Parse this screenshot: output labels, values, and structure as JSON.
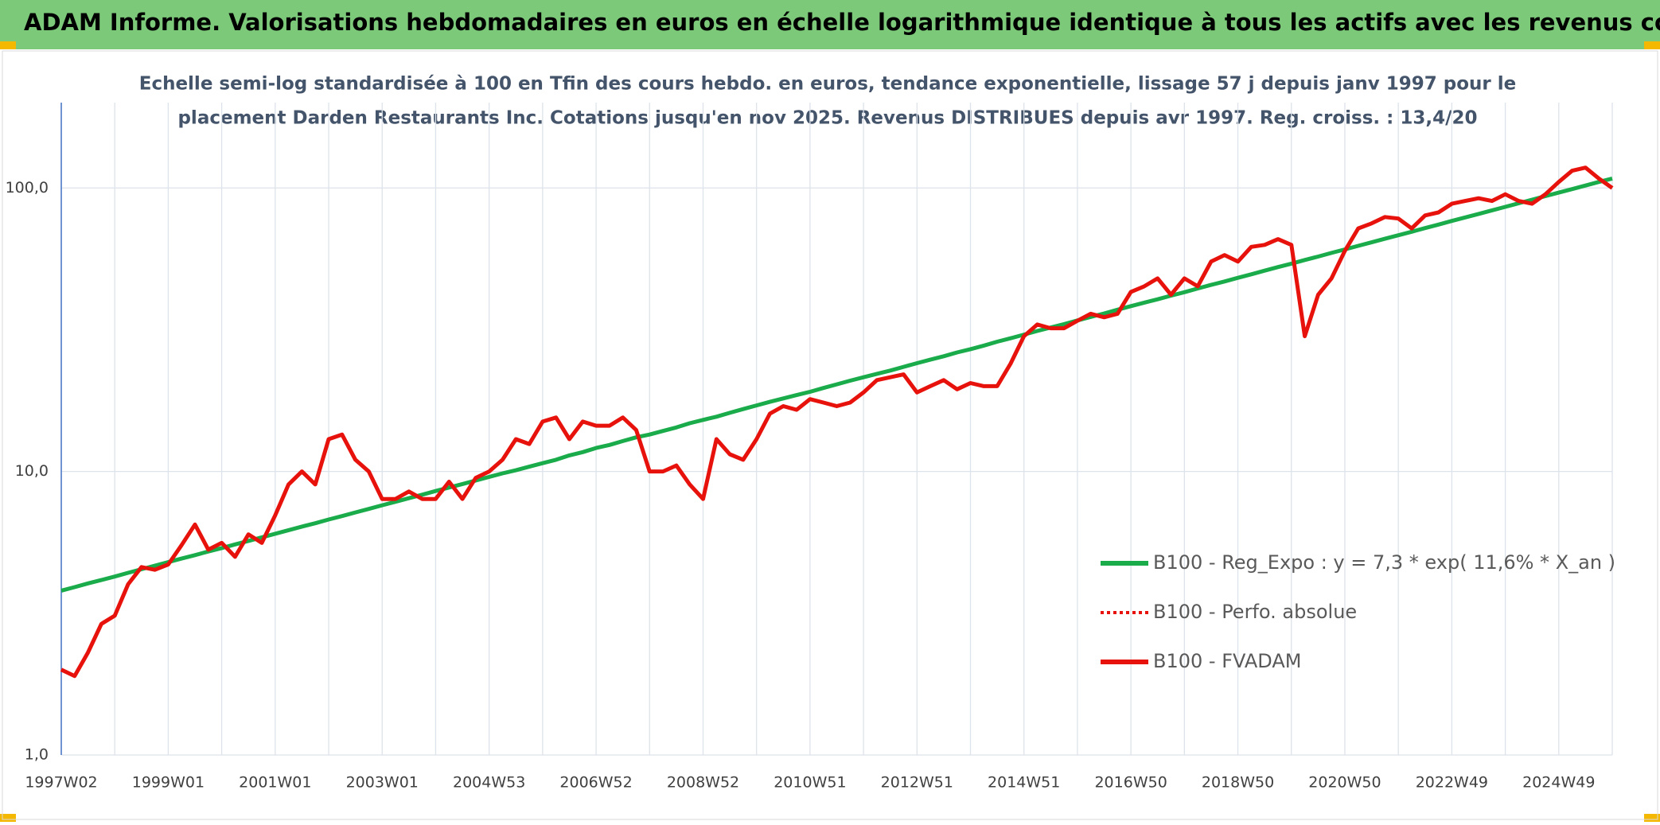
{
  "chart_data": {
    "type": "line",
    "title": "ADAM Informe. Valorisations hebdomadaires en euros en échelle logarithmique identique à tous les actifs avec les revenus connus distribués",
    "subtitle": [
      "Echelle semi-log standardisée à 100 en Tfin des cours hebdo. en euros, tendance exponentielle, lissage 57 j depuis janv 1997 pour le",
      "placement Darden Restaurants Inc. Cotations jusqu'en nov 2025. Revenus DISTRIBUES depuis avr 1997. Reg. croiss. : 13,4/20"
    ],
    "categories": [
      "1997W02",
      null,
      null,
      null,
      null,
      null,
      null,
      null,
      "1999W01",
      null,
      null,
      null,
      null,
      null,
      null,
      null,
      "2001W01",
      null,
      null,
      null,
      null,
      null,
      null,
      null,
      "2003W01",
      null,
      null,
      null,
      null,
      null,
      null,
      null,
      "2004W53",
      null,
      null,
      null,
      null,
      null,
      null,
      null,
      "2006W52",
      null,
      null,
      null,
      null,
      null,
      null,
      null,
      "2008W52",
      null,
      null,
      null,
      null,
      null,
      null,
      null,
      "2010W51",
      null,
      null,
      null,
      null,
      null,
      null,
      null,
      "2012W51",
      null,
      null,
      null,
      null,
      null,
      null,
      null,
      "2014W51",
      null,
      null,
      null,
      null,
      null,
      null,
      null,
      "2016W50",
      null,
      null,
      null,
      null,
      null,
      null,
      null,
      "2018W50",
      null,
      null,
      null,
      null,
      null,
      null,
      null,
      "2020W50",
      null,
      null,
      null,
      null,
      null,
      null,
      null,
      "2022W49",
      null,
      null,
      null,
      null,
      null,
      null,
      null,
      "2024W49",
      null,
      null,
      null,
      null
    ],
    "log_scale": true,
    "ylim": [
      1,
      200
    ],
    "yticks": [
      {
        "value": 1,
        "label": "1,0"
      },
      {
        "value": 10,
        "label": "10,0"
      },
      {
        "value": 100,
        "label": "100,0"
      }
    ],
    "grid": true,
    "legend": "right",
    "series": [
      {
        "name": "B100 - Reg_Expo : y = 7,3 * exp( 11,6% *  X_an )",
        "color": "#1aab4b",
        "style": "solid",
        "values": [
          3.8,
          3.91,
          4.03,
          4.14,
          4.26,
          4.39,
          4.52,
          4.65,
          4.79,
          4.93,
          5.07,
          5.22,
          5.37,
          5.53,
          5.69,
          5.86,
          6.03,
          6.21,
          6.39,
          6.57,
          6.77,
          6.96,
          7.17,
          7.38,
          7.6,
          7.82,
          8.05,
          8.28,
          8.53,
          8.78,
          9.03,
          9.3,
          9.57,
          9.85,
          10.1,
          10.4,
          10.7,
          11.0,
          11.4,
          11.7,
          12.1,
          12.4,
          12.8,
          13.2,
          13.5,
          13.9,
          14.3,
          14.8,
          15.2,
          15.6,
          16.1,
          16.6,
          17.1,
          17.6,
          18.1,
          18.6,
          19.1,
          19.7,
          20.3,
          20.9,
          21.5,
          22.1,
          22.7,
          23.4,
          24.1,
          24.8,
          25.5,
          26.3,
          27.0,
          27.8,
          28.7,
          29.5,
          30.4,
          31.3,
          32.2,
          33.1,
          34.1,
          35.1,
          36.1,
          37.2,
          38.3,
          39.4,
          40.5,
          41.7,
          42.9,
          44.2,
          45.5,
          46.8,
          48.2,
          49.6,
          51.1,
          52.6,
          54.1,
          55.7,
          57.3,
          59.0,
          60.7,
          62.5,
          64.3,
          66.2,
          68.1,
          70.1,
          72.2,
          74.3,
          76.5,
          78.7,
          81.0,
          83.4,
          85.8,
          88.3,
          90.9,
          93.6,
          96.3,
          99.1,
          102,
          105,
          108
        ]
      },
      {
        "name": "B100 - Perfo. absolue",
        "color": "#e8120c",
        "style": "dotted",
        "values": [
          2.0,
          1.9,
          2.3,
          2.9,
          3.1,
          4.0,
          4.6,
          4.5,
          4.7,
          5.5,
          6.5,
          5.3,
          5.6,
          5.0,
          6.0,
          5.6,
          7.0,
          9.0,
          10.0,
          9.0,
          13.0,
          13.5,
          11.0,
          10.0,
          8.0,
          8.0,
          8.5,
          8.0,
          8.0,
          9.2,
          8.0,
          9.5,
          10.0,
          11.0,
          13.0,
          12.5,
          15.0,
          15.5,
          13.0,
          15.0,
          14.5,
          14.5,
          15.5,
          14.0,
          10.0,
          10.0,
          10.5,
          9.0,
          8.0,
          13.0,
          11.5,
          11.0,
          13.0,
          16.0,
          17.0,
          16.5,
          18.0,
          17.5,
          17.0,
          17.5,
          19.0,
          21.0,
          21.5,
          22.0,
          19.0,
          20.0,
          21.0,
          19.5,
          20.5,
          20.0,
          20.0,
          24.0,
          30.0,
          33.0,
          32.0,
          32.0,
          34.0,
          36.0,
          35.0,
          36.0,
          43.0,
          45.0,
          48.0,
          42.0,
          48.0,
          45.0,
          55.0,
          58.0,
          55.0,
          62.0,
          63.0,
          66.0,
          63.0,
          30.0,
          42.0,
          48.0,
          60.0,
          72.0,
          75.0,
          79.0,
          78.0,
          72.0,
          80.0,
          82.0,
          88.0,
          90.0,
          92.0,
          90.0,
          95.0,
          90.0,
          88.0,
          95.0,
          105.0,
          115.0,
          118.0,
          108.0,
          100.0
        ]
      },
      {
        "name": "B100 - FVADAM",
        "color": "#e8120c",
        "style": "solid",
        "values": [
          2.0,
          1.9,
          2.3,
          2.9,
          3.1,
          4.0,
          4.6,
          4.5,
          4.7,
          5.5,
          6.5,
          5.3,
          5.6,
          5.0,
          6.0,
          5.6,
          7.0,
          9.0,
          10.0,
          9.0,
          13.0,
          13.5,
          11.0,
          10.0,
          8.0,
          8.0,
          8.5,
          8.0,
          8.0,
          9.2,
          8.0,
          9.5,
          10.0,
          11.0,
          13.0,
          12.5,
          15.0,
          15.5,
          13.0,
          15.0,
          14.5,
          14.5,
          15.5,
          14.0,
          10.0,
          10.0,
          10.5,
          9.0,
          8.0,
          13.0,
          11.5,
          11.0,
          13.0,
          16.0,
          17.0,
          16.5,
          18.0,
          17.5,
          17.0,
          17.5,
          19.0,
          21.0,
          21.5,
          22.0,
          19.0,
          20.0,
          21.0,
          19.5,
          20.5,
          20.0,
          20.0,
          24.0,
          30.0,
          33.0,
          32.0,
          32.0,
          34.0,
          36.0,
          35.0,
          36.0,
          43.0,
          45.0,
          48.0,
          42.0,
          48.0,
          45.0,
          55.0,
          58.0,
          55.0,
          62.0,
          63.0,
          66.0,
          63.0,
          30.0,
          42.0,
          48.0,
          60.0,
          72.0,
          75.0,
          79.0,
          78.0,
          72.0,
          80.0,
          82.0,
          88.0,
          90.0,
          92.0,
          90.0,
          95.0,
          90.0,
          88.0,
          95.0,
          105.0,
          115.0,
          118.0,
          108.0,
          100.0
        ]
      }
    ]
  }
}
